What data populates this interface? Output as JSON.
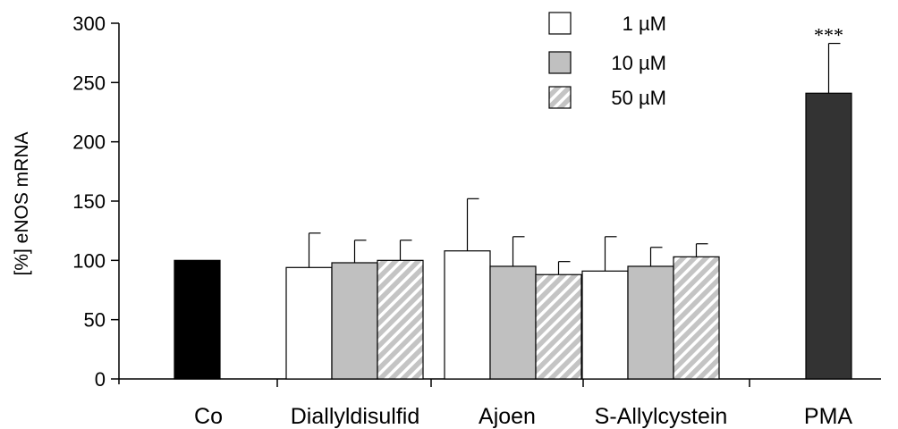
{
  "chart_data": {
    "type": "bar",
    "ylabel": "[%] eNOS mRNA",
    "xlabel": "",
    "ylim": [
      0,
      300
    ],
    "yticks": [
      0,
      50,
      100,
      150,
      200,
      250,
      300
    ],
    "grid": false,
    "legend_position": "top-right",
    "legend": [
      {
        "key": "1uM",
        "label": "1 µM",
        "color": "#ffffff",
        "pattern": "none"
      },
      {
        "key": "10uM",
        "label": "10 µM",
        "color": "#c0c0c0",
        "pattern": "none"
      },
      {
        "key": "50uM",
        "label": "50 µM",
        "color": "#c8c8c8",
        "pattern": "hatched"
      }
    ],
    "groups": [
      {
        "name": "Co",
        "bars": [
          {
            "series": "control",
            "value": 100,
            "error": null,
            "color": "#000000"
          }
        ]
      },
      {
        "name": "Diallyldisulfid",
        "bars": [
          {
            "series": "1uM",
            "value": 94,
            "error": 29
          },
          {
            "series": "10uM",
            "value": 98,
            "error": 19
          },
          {
            "series": "50uM",
            "value": 100,
            "error": 17
          }
        ]
      },
      {
        "name": "Ajoen",
        "bars": [
          {
            "series": "1uM",
            "value": 108,
            "error": 44
          },
          {
            "series": "10uM",
            "value": 95,
            "error": 25
          },
          {
            "series": "50uM",
            "value": 88,
            "error": 11
          }
        ]
      },
      {
        "name": "S-Allylcystein",
        "bars": [
          {
            "series": "1uM",
            "value": 91,
            "error": 29
          },
          {
            "series": "10uM",
            "value": 95,
            "error": 16
          },
          {
            "series": "50uM",
            "value": 103,
            "error": 11
          }
        ]
      },
      {
        "name": "PMA",
        "bars": [
          {
            "series": "PMA",
            "value": 241,
            "error": 42,
            "color": "#333333",
            "annotation": "***"
          }
        ]
      }
    ]
  }
}
